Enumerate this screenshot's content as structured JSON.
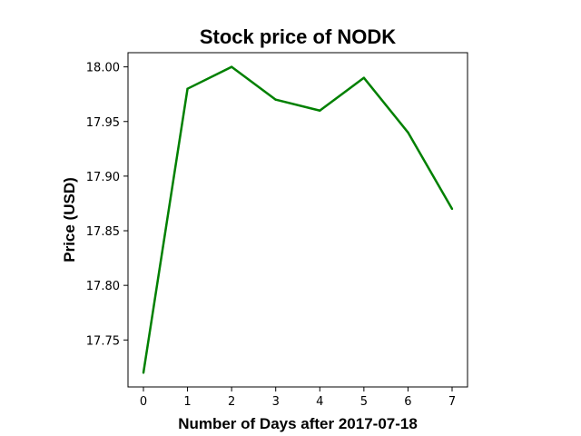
{
  "chart_data": {
    "type": "line",
    "title": "Stock price of NODK",
    "xlabel": "Number of Days after 2017-07-18",
    "ylabel": "Price (USD)",
    "x": [
      0,
      1,
      2,
      3,
      4,
      5,
      6,
      7
    ],
    "series": [
      {
        "values": [
          17.72,
          17.98,
          18.0,
          17.97,
          17.96,
          17.99,
          17.94,
          17.87
        ],
        "color": "#008000"
      }
    ],
    "xlim": [
      -0.35,
      7.35
    ],
    "ylim": [
      17.707,
      18.013
    ],
    "xticks": [
      0,
      1,
      2,
      3,
      4,
      5,
      6,
      7
    ],
    "xtick_labels": [
      "0",
      "1",
      "2",
      "3",
      "4",
      "5",
      "6",
      "7"
    ],
    "yticks": [
      17.75,
      17.8,
      17.85,
      17.9,
      17.95,
      18.0
    ],
    "ytick_labels": [
      "17.75",
      "17.80",
      "17.85",
      "17.90",
      "17.95",
      "18.00"
    ],
    "grid": false,
    "legend": "none"
  }
}
